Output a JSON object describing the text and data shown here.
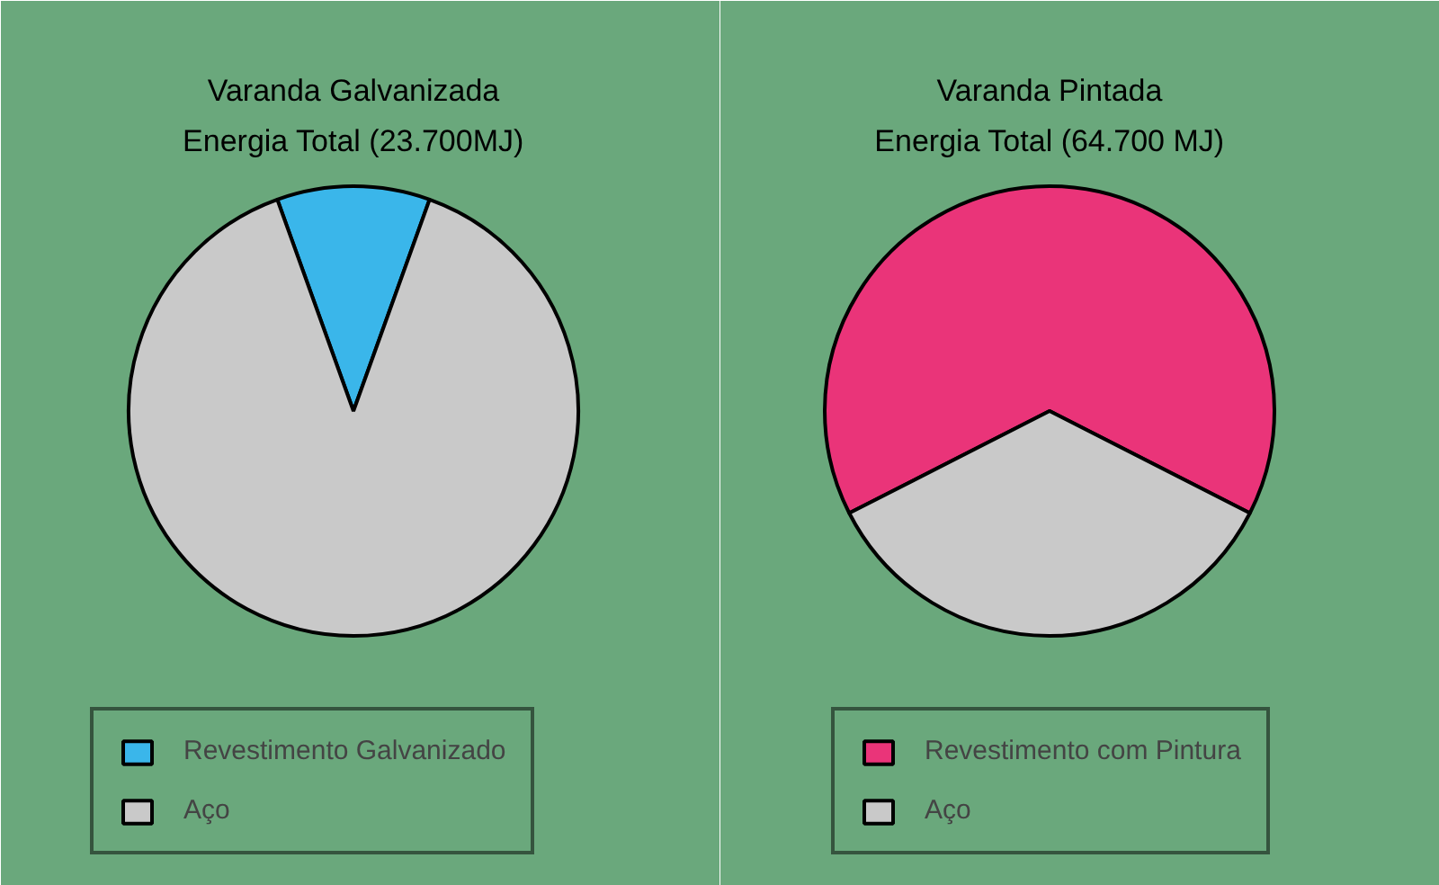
{
  "chart_data": [
    {
      "type": "pie",
      "title": "Varanda Galvanizada",
      "subtitle": "Energia Total (23.700MJ)",
      "categories": [
        "Revestimento Galvanizado",
        "Aço"
      ],
      "values": [
        11,
        89
      ],
      "colors": [
        "#3ab6ea",
        "#c9c9c9"
      ],
      "legend": "bottom"
    },
    {
      "type": "pie",
      "title": "Varanda Pintada",
      "subtitle": "Energia Total (64.700 MJ)",
      "categories": [
        "Revestimento com Pintura",
        "Aço"
      ],
      "values": [
        65,
        35
      ],
      "colors": [
        "#ea3479",
        "#c9c9c9"
      ],
      "legend": "bottom"
    }
  ]
}
